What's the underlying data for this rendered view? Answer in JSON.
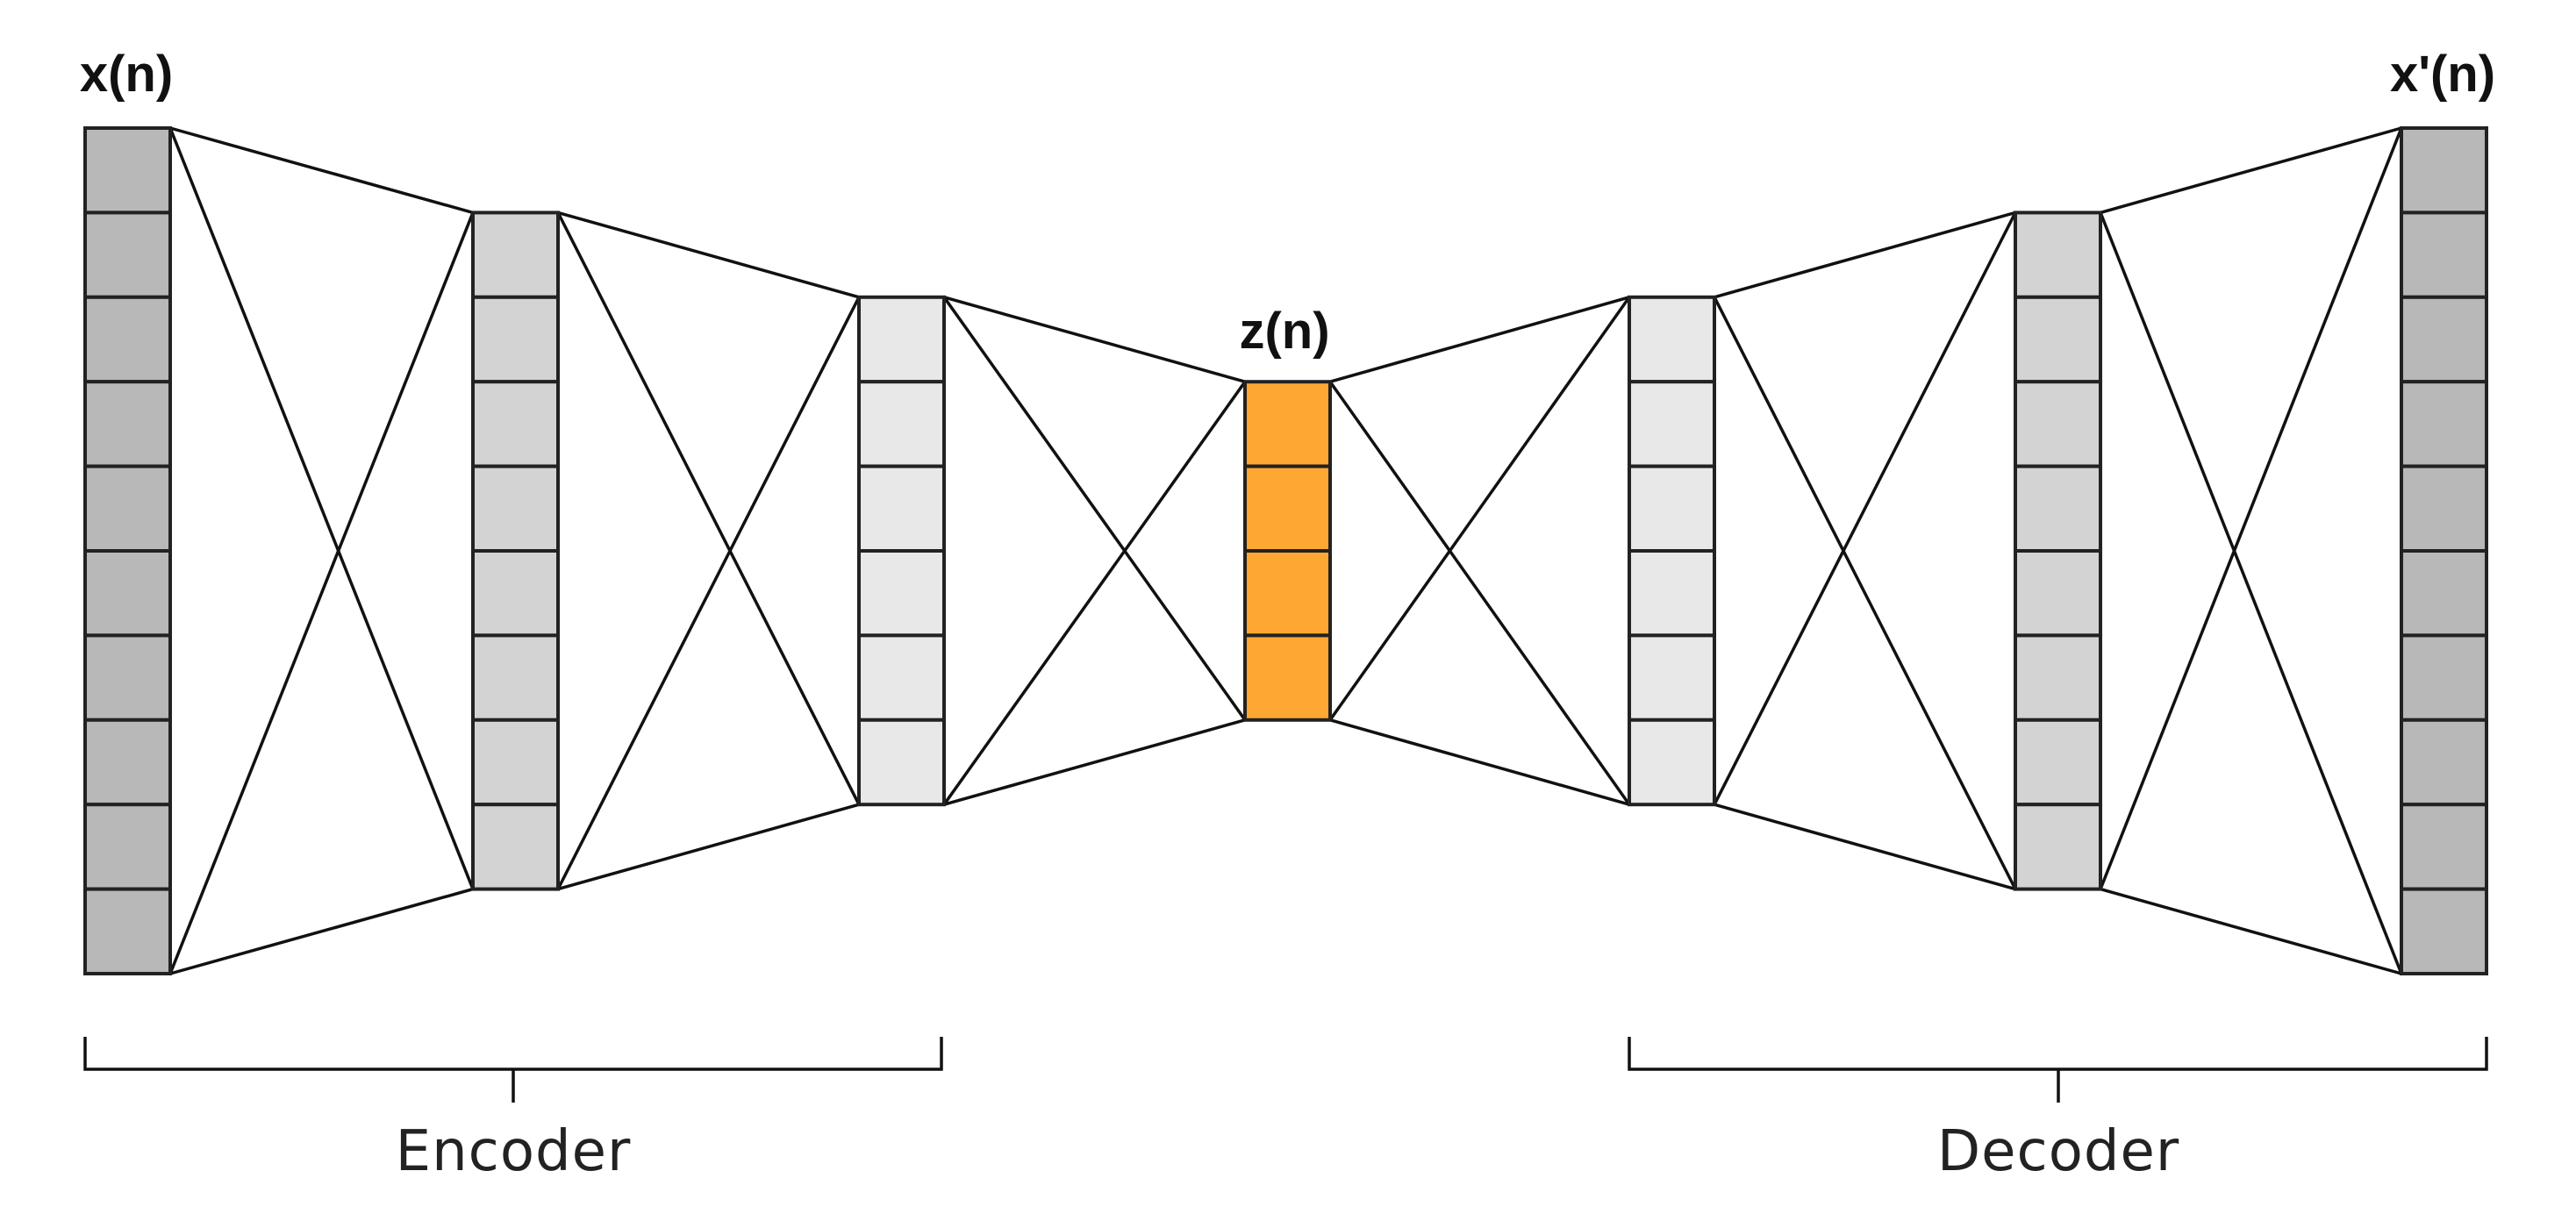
{
  "labels": {
    "input": "x(n)",
    "latent": "z(n)",
    "output": "x'(n)",
    "encoder": "Encoder",
    "decoder": "Decoder"
  },
  "layers": [
    {
      "name": "input-layer",
      "units": 10,
      "color": "#b8b8b8"
    },
    {
      "name": "encoder-hidden-1",
      "units": 8,
      "color": "#d3d3d3"
    },
    {
      "name": "encoder-hidden-2",
      "units": 6,
      "color": "#e8e8e8"
    },
    {
      "name": "latent-layer",
      "units": 4,
      "color": "#ffa733"
    },
    {
      "name": "decoder-hidden-1",
      "units": 6,
      "color": "#e8e8e8"
    },
    {
      "name": "decoder-hidden-2",
      "units": 8,
      "color": "#d3d3d3"
    },
    {
      "name": "output-layer",
      "units": 10,
      "color": "#b8b8b8"
    }
  ],
  "colors": {
    "line": "#111111",
    "cell_border": "#222222"
  }
}
